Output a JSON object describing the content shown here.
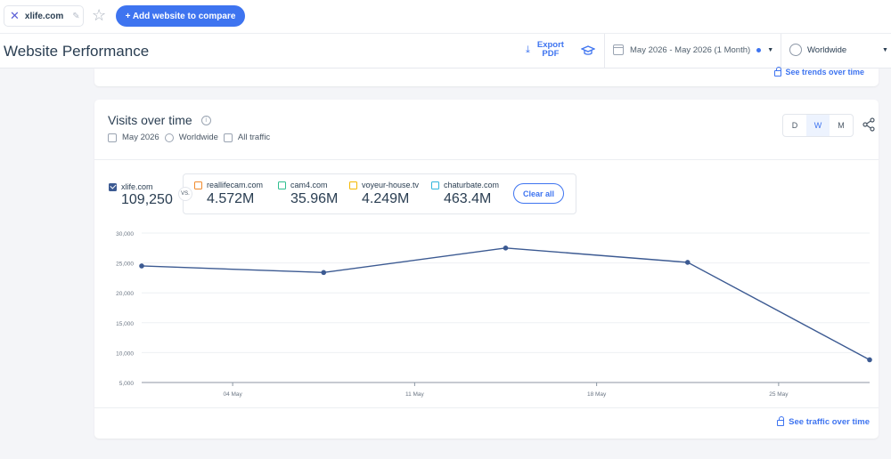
{
  "topbar": {
    "site_chip": {
      "name": "xlife.com",
      "icon": "x-logo-icon"
    },
    "add_button": "+ Add website to compare"
  },
  "header": {
    "title": "Website Performance",
    "export_line1": "Export",
    "export_line2": "PDF",
    "date_range": "May 2026 - May 2026 (1 Month)",
    "region": "Worldwide"
  },
  "upper_card": {
    "link": "See trends over time"
  },
  "visits": {
    "title": "Visits over time",
    "date": "May 2026",
    "region": "Worldwide",
    "traffic": "All traffic",
    "granularity": [
      "D",
      "W",
      "M"
    ],
    "active_granularity": "W",
    "main_site": {
      "name": "xlife.com",
      "value": "109,250",
      "color": "#3c5a92"
    },
    "vs_label": "VS.",
    "competitors": [
      {
        "name": "reallifecam.com",
        "value": "4.572M",
        "color": "#f18a2b"
      },
      {
        "name": "cam4.com",
        "value": "35.96M",
        "color": "#2fbf8f"
      },
      {
        "name": "voyeur-house.tv",
        "value": "4.249M",
        "color": "#f5b800"
      },
      {
        "name": "chaturbate.com",
        "value": "463.4M",
        "color": "#30b5dc"
      }
    ],
    "clear_all": "Clear all",
    "bottom_link": "See traffic over time"
  },
  "chart_data": {
    "type": "line",
    "y_ticks": [
      "30,000",
      "25,000",
      "20,000",
      "15,000",
      "10,000",
      "5,000"
    ],
    "ylim": [
      5000,
      30000
    ],
    "x_tick_labels": [
      "04 May",
      "11 May",
      "18 May",
      "25 May"
    ],
    "series": [
      {
        "name": "xlife.com",
        "color": "#3c5a92",
        "values": [
          24500,
          23400,
          27500,
          25100,
          8800
        ]
      }
    ],
    "grid": true
  }
}
